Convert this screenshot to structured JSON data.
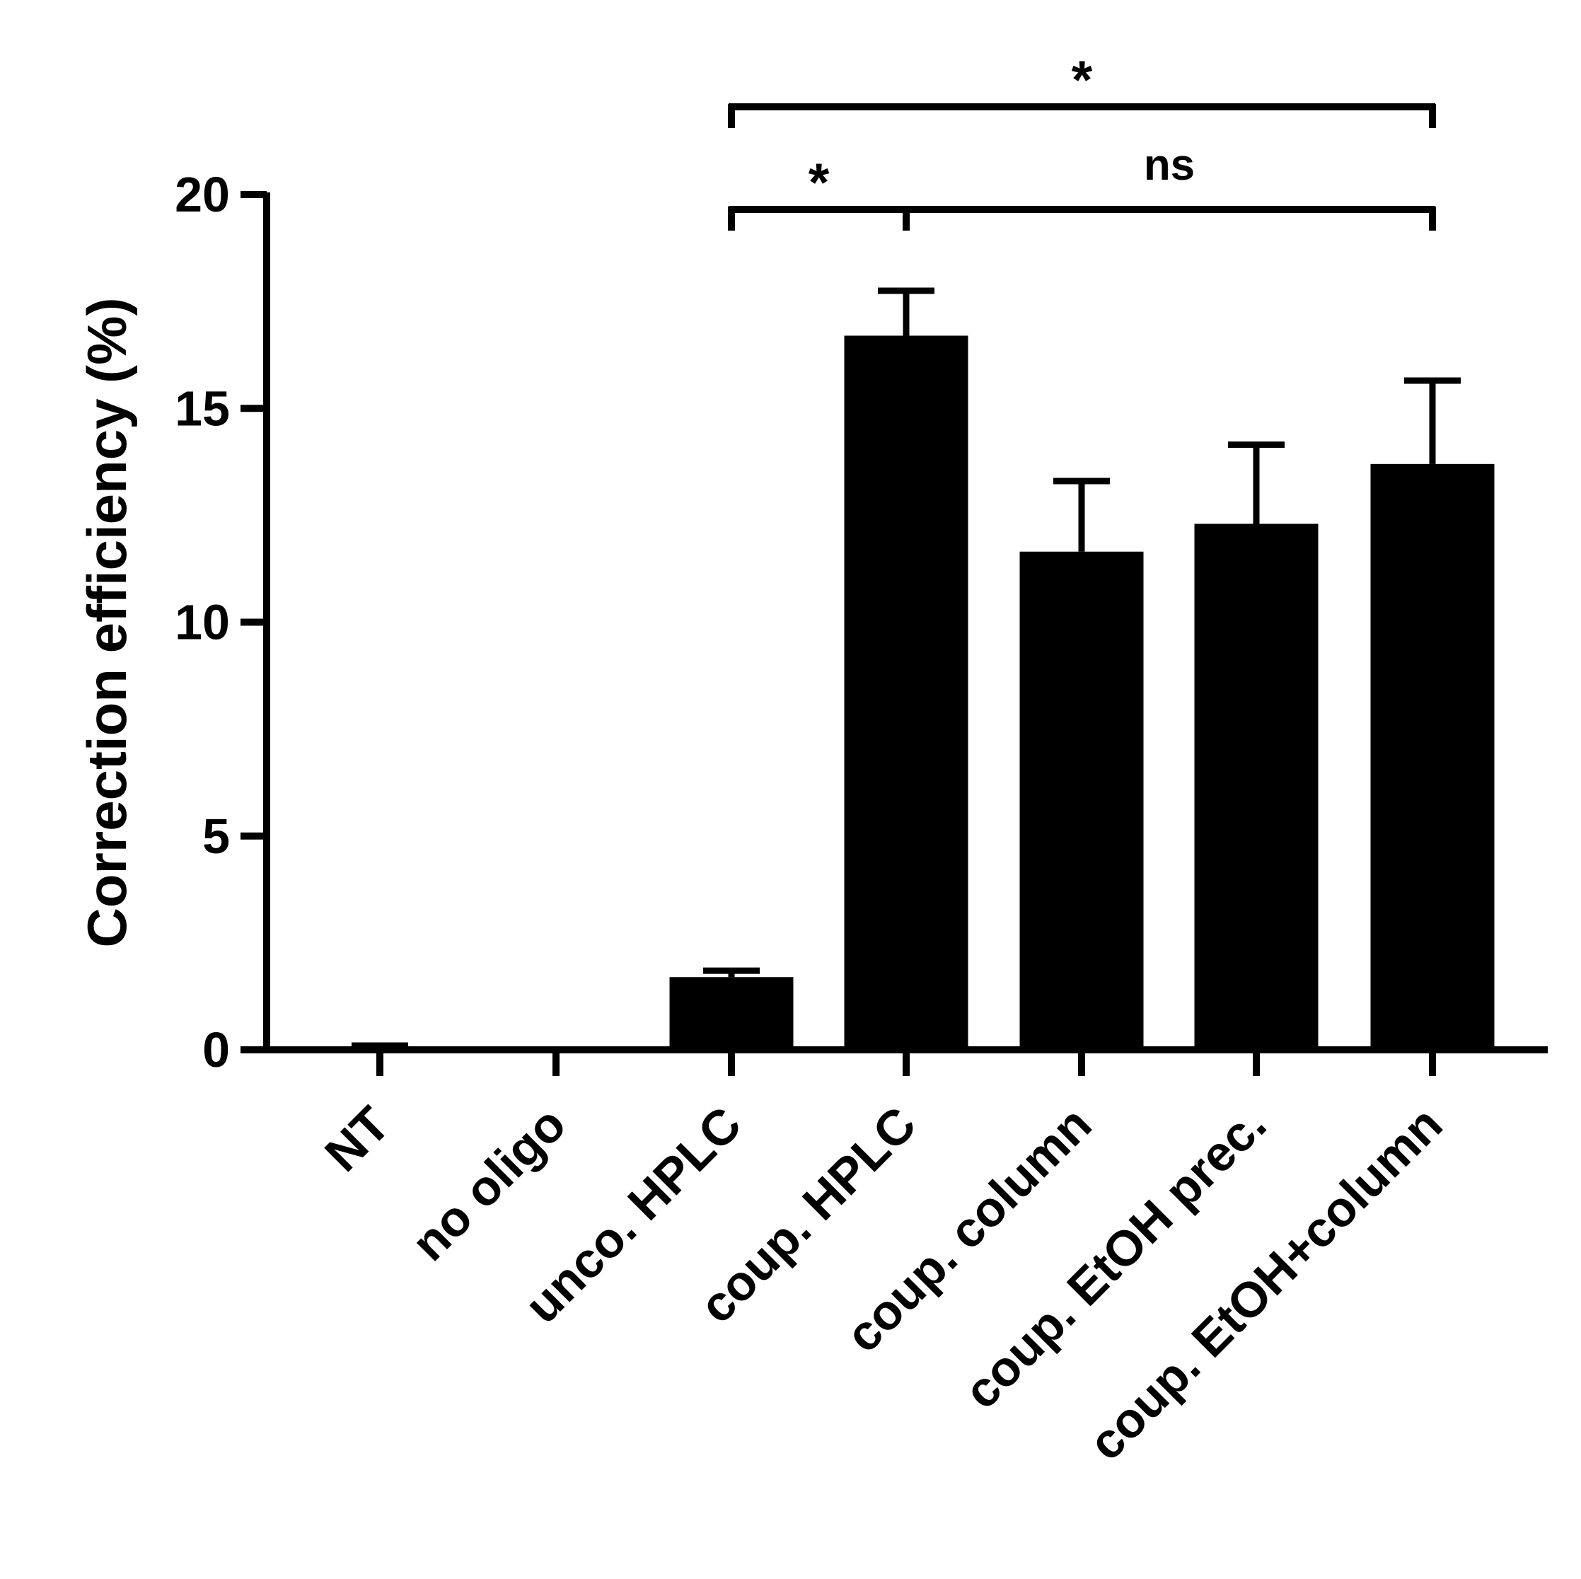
{
  "chart_data": {
    "type": "bar",
    "title": "",
    "xlabel": "",
    "ylabel": "Correction efficiency (%)",
    "ylim": [
      0,
      20
    ],
    "yticks": [
      0,
      5,
      10,
      15,
      20
    ],
    "grid": false,
    "legend": "none",
    "categories": [
      "NT",
      "no oligo",
      "unco. HPLC",
      "coup. HPLC",
      "coup. column",
      "coup. EtOH prec.",
      "coup. EtOH+column"
    ],
    "values": [
      0.08,
      0.0,
      1.7,
      16.7,
      11.65,
      12.3,
      13.7
    ],
    "errors": [
      0.02,
      0.0,
      0.15,
      1.05,
      1.65,
      1.85,
      1.95
    ],
    "bar_color": "#000000",
    "significance": [
      {
        "from": "unco. HPLC",
        "to": "coup. HPLC",
        "label": "*",
        "level": 1
      },
      {
        "from": "coup. HPLC",
        "to": "coup. EtOH+column",
        "label": "ns",
        "level": 1
      },
      {
        "from": "unco. HPLC",
        "to": "coup. EtOH+column",
        "label": "*",
        "level": 2
      }
    ]
  }
}
